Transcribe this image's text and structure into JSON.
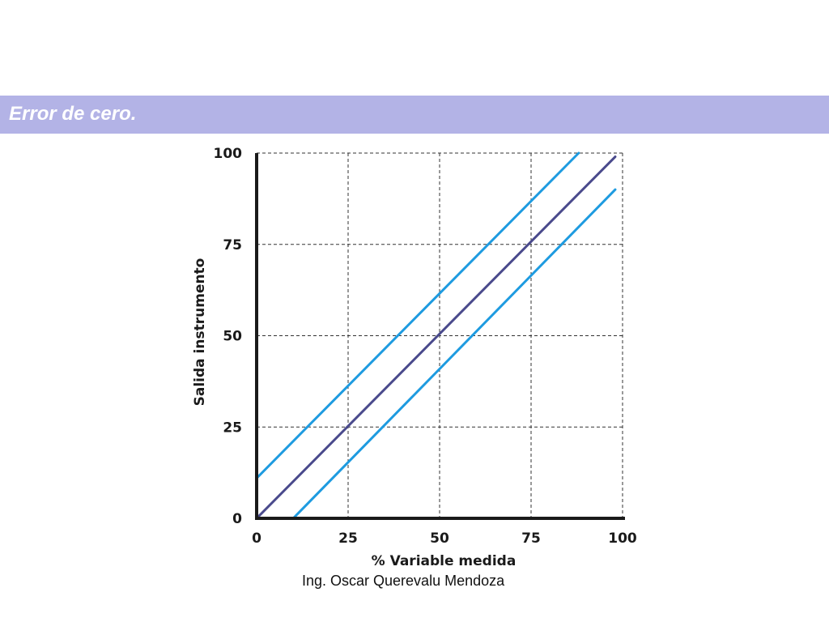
{
  "header": {
    "title": "Error de cero."
  },
  "footer": {
    "author": "Ing. Oscar Querevalu Mendoza"
  },
  "colors": {
    "header_band": "#b3b3e6",
    "ideal_line": "#4a4a8c",
    "error_lines": "#1e9be0",
    "grid": "#333333"
  },
  "chart_data": {
    "type": "line",
    "title": "",
    "xlabel": "% Variable medida",
    "ylabel": "Salida instrumento",
    "xlim": [
      0,
      100
    ],
    "ylim": [
      0,
      100
    ],
    "xticks": [
      "0",
      "25",
      "50",
      "75",
      "100"
    ],
    "yticks": [
      "0",
      "25",
      "50",
      "75",
      "100"
    ],
    "grid": "dashed",
    "series": [
      {
        "color": "#1e9be0",
        "x": [
          0,
          88
        ],
        "y": [
          11,
          100
        ]
      },
      {
        "color": "#4a4a8c",
        "x": [
          0,
          98
        ],
        "y": [
          0,
          99
        ]
      },
      {
        "color": "#1e9be0",
        "x": [
          10,
          98
        ],
        "y": [
          0,
          90
        ]
      }
    ]
  }
}
